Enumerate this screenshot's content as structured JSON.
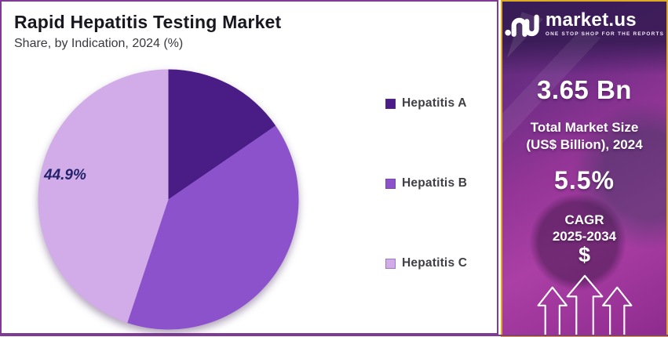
{
  "panel": {
    "title": "Rapid Hepatitis Testing Market",
    "subtitle": "Share, by Indication, 2024 (%)"
  },
  "chart_data": {
    "type": "pie",
    "title": "Rapid Hepatitis Testing Market",
    "subtitle": "Share, by Indication, 2024 (%)",
    "unit": "%",
    "categories": [
      "Hepatitis A",
      "Hepatitis B",
      "Hepatitis C"
    ],
    "values": [
      15.4,
      39.7,
      44.9
    ],
    "colors": [
      "#4a1c85",
      "#8c52cc",
      "#d2abe9"
    ],
    "start_angle_deg": 0,
    "direction": "clockwise",
    "legend_position": "right",
    "data_label": {
      "category": "Hepatitis C",
      "text": "44.9%"
    }
  },
  "sidebar": {
    "brand": "market.us",
    "tagline": "ONE STOP SHOP FOR THE REPORTS",
    "market_size": {
      "value": "3.65 Bn",
      "label_line1": "Total Market Size",
      "label_line2": "(US$ Billion), 2024"
    },
    "cagr": {
      "value": "5.5%",
      "label_line1": "CAGR",
      "label_line2": "2025-2034"
    },
    "dollar_symbol": "$"
  },
  "colors": {
    "panel_border": "#7e3a94",
    "sidebar_border": "#ddab25",
    "pie_label_text": "#23226b"
  }
}
